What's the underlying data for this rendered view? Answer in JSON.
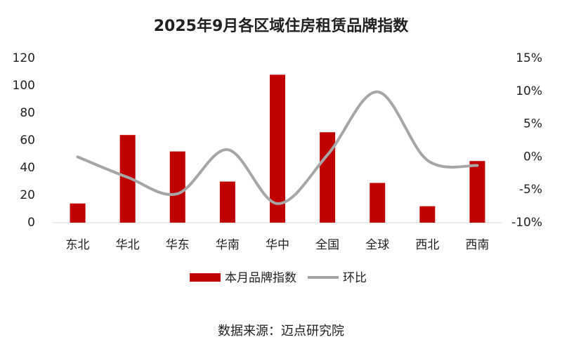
{
  "chart_data": {
    "type": "bar_line",
    "title": "2025年9月各区域住房租赁品牌指数",
    "categories": [
      "东北",
      "华北",
      "华东",
      "华南",
      "华中",
      "全国",
      "全球",
      "西北",
      "西南"
    ],
    "series": [
      {
        "name": "本月品牌指数",
        "type": "bar",
        "color": "#c00000",
        "values": [
          14,
          64,
          52,
          30,
          108,
          66,
          29,
          12,
          45
        ]
      },
      {
        "name": "环比",
        "type": "line",
        "axis": "y2",
        "color": "#a6a6a6",
        "values": [
          0,
          -3.1,
          -5.6,
          1.1,
          -7.1,
          0.3,
          9.9,
          -0.5,
          -1.3
        ]
      }
    ],
    "ylim": [
      0,
      120
    ],
    "yticks": [
      0,
      20,
      40,
      60,
      80,
      100,
      120
    ],
    "y2lim": [
      -10,
      15
    ],
    "y2ticks": [
      {
        "value": -10,
        "label": "-10%"
      },
      {
        "value": -5,
        "label": "-5%"
      },
      {
        "value": 0,
        "label": "0%"
      },
      {
        "value": 5,
        "label": "5%"
      },
      {
        "value": 10,
        "label": "10%"
      },
      {
        "value": 15,
        "label": "15%"
      }
    ],
    "source": "数据来源：迈点研究院"
  }
}
